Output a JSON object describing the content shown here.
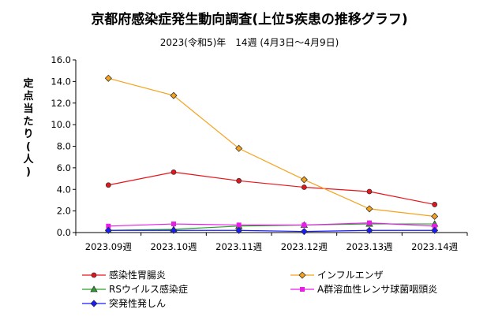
{
  "chart_data": {
    "type": "line",
    "title": "京都府感染症発生動向調査(上位5疾患の推移グラフ)",
    "subtitle": "2023(令和5)年　14週 (4月3日〜4月9日)",
    "ylabel": "定点当たり (人)",
    "xlabel": "",
    "categories": [
      "2023.09週",
      "2023.10週",
      "2023.11週",
      "2023.12週",
      "2023.13週",
      "2023.14週"
    ],
    "ylim": [
      0,
      16
    ],
    "yticks": [
      "0.0",
      "2.0",
      "4.0",
      "6.0",
      "8.0",
      "10.0",
      "12.0",
      "14.0",
      "16.0"
    ],
    "grid": false,
    "legend_position": "bottom",
    "series": [
      {
        "name": "感染性胃腸炎",
        "color": "#e8141a",
        "marker": "circle",
        "values": [
          4.4,
          5.6,
          4.8,
          4.2,
          3.8,
          2.6
        ]
      },
      {
        "name": "インフルエンザ",
        "color": "#f5a21c",
        "marker": "diamond",
        "values": [
          14.3,
          12.7,
          7.8,
          4.9,
          2.2,
          1.5
        ]
      },
      {
        "name": "RSウイルス感染症",
        "color": "#2aa02a",
        "marker": "triangle",
        "values": [
          0.2,
          0.3,
          0.6,
          0.7,
          0.8,
          0.8
        ]
      },
      {
        "name": "A群溶血性レンサ球菌咽頭炎",
        "color": "#e61ee6",
        "marker": "square",
        "values": [
          0.6,
          0.8,
          0.7,
          0.7,
          0.9,
          0.6
        ]
      },
      {
        "name": "突発性発しん",
        "color": "#1a1aff",
        "marker": "diamond",
        "values": [
          0.2,
          0.2,
          0.2,
          0.1,
          0.2,
          0.2
        ]
      }
    ]
  }
}
